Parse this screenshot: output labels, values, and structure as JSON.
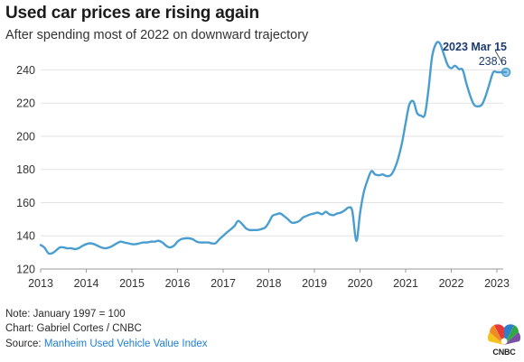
{
  "title": "Used car prices are rising again",
  "subtitle": "After spending most of 2022 on downward trajectory",
  "footer": {
    "note": "Note: January 1997 = 100",
    "credit": "Chart: Gabriel Cortes / CNBC",
    "source_prefix": "Source: ",
    "source_link": "Manheim Used Vehicle Value Index"
  },
  "logo": {
    "text": "CNBC"
  },
  "colors": {
    "line": "#4a9ecf",
    "grid": "#e2e2e2",
    "callout": "#1b3b6f",
    "source_link": "#1e7fd0"
  },
  "chart_data": {
    "type": "line",
    "title": "",
    "xlabel": "",
    "ylabel": "",
    "x_ticks": [
      "2013",
      "2014",
      "2015",
      "2016",
      "2017",
      "2018",
      "2019",
      "2020",
      "2021",
      "2022",
      "2023"
    ],
    "y_ticks": [
      120,
      140,
      160,
      180,
      200,
      220,
      240
    ],
    "xlim": [
      2013.0,
      2023.2
    ],
    "ylim": [
      120,
      262
    ],
    "grid": true,
    "annotation": {
      "label": "2023 Mar 15",
      "value_label": "238.6",
      "x": 2023.2,
      "y": 238.6
    },
    "series": [
      {
        "x": [
          2013.0,
          2013.08,
          2013.17,
          2013.25,
          2013.33,
          2013.42,
          2013.5,
          2013.58,
          2013.67,
          2013.75,
          2013.83,
          2013.92,
          2014.0,
          2014.08,
          2014.17,
          2014.25,
          2014.33,
          2014.42,
          2014.5,
          2014.58,
          2014.67,
          2014.75,
          2014.83,
          2014.92,
          2015.0,
          2015.08,
          2015.17,
          2015.25,
          2015.33,
          2015.42,
          2015.5,
          2015.58,
          2015.67,
          2015.75,
          2015.83,
          2015.92,
          2016.0,
          2016.08,
          2016.17,
          2016.25,
          2016.33,
          2016.42,
          2016.5,
          2016.58,
          2016.67,
          2016.75,
          2016.83,
          2016.92,
          2017.0,
          2017.08,
          2017.17,
          2017.25,
          2017.33,
          2017.42,
          2017.5,
          2017.58,
          2017.67,
          2017.75,
          2017.83,
          2017.92,
          2018.0,
          2018.08,
          2018.17,
          2018.25,
          2018.33,
          2018.42,
          2018.5,
          2018.58,
          2018.67,
          2018.75,
          2018.83,
          2018.92,
          2019.0,
          2019.08,
          2019.17,
          2019.25,
          2019.33,
          2019.42,
          2019.5,
          2019.58,
          2019.67,
          2019.75,
          2019.83,
          2019.92,
          2020.0,
          2020.08,
          2020.17,
          2020.25,
          2020.33,
          2020.42,
          2020.5,
          2020.58,
          2020.67,
          2020.75,
          2020.83,
          2020.92,
          2021.0,
          2021.08,
          2021.17,
          2021.25,
          2021.33,
          2021.42,
          2021.5,
          2021.58,
          2021.67,
          2021.75,
          2021.83,
          2021.92,
          2022.0,
          2022.08,
          2022.17,
          2022.25,
          2022.33,
          2022.42,
          2022.5,
          2022.58,
          2022.67,
          2022.75,
          2022.83,
          2022.92,
          2023.0,
          2023.08,
          2023.2
        ],
        "values": [
          134.5,
          133.0,
          129.5,
          129.5,
          131.0,
          133.0,
          133.0,
          132.5,
          132.5,
          132.0,
          132.5,
          134.0,
          135.0,
          135.5,
          135.0,
          134.0,
          133.0,
          132.5,
          133.0,
          134.0,
          135.5,
          136.5,
          136.0,
          135.5,
          135.0,
          135.0,
          135.5,
          136.0,
          136.0,
          136.5,
          136.5,
          137.0,
          136.0,
          134.0,
          133.0,
          134.0,
          136.5,
          138.0,
          138.5,
          138.5,
          138.0,
          136.5,
          136.0,
          136.0,
          136.0,
          135.5,
          135.5,
          138.0,
          140.0,
          142.0,
          144.0,
          146.0,
          149.0,
          147.0,
          144.5,
          143.5,
          143.5,
          143.5,
          144.0,
          145.0,
          148.0,
          152.0,
          153.0,
          153.5,
          152.0,
          150.0,
          148.0,
          148.0,
          149.0,
          151.0,
          152.0,
          153.0,
          153.5,
          154.0,
          153.0,
          154.5,
          153.0,
          152.5,
          153.5,
          154.0,
          155.5,
          157.0,
          155.0,
          137.0,
          153.5,
          166.0,
          174.0,
          179.0,
          177.0,
          176.5,
          177.0,
          176.0,
          176.5,
          180.0,
          186.0,
          196.0,
          208.0,
          219.0,
          221.0,
          214.0,
          212.5,
          213.0,
          228.0,
          248.0,
          256.0,
          256.0,
          250.0,
          243.0,
          241.0,
          242.5,
          240.5,
          240.0,
          232.0,
          224.0,
          219.0,
          218.0,
          219.0,
          224.0,
          231.0,
          238.6,
          238.6,
          238.6,
          238.6
        ]
      }
    ]
  }
}
